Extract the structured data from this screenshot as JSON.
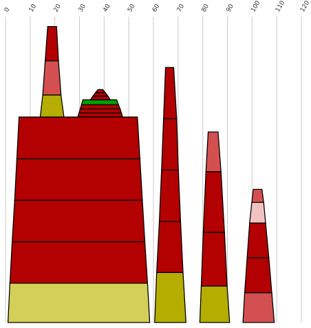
{
  "chart_data": {
    "type": "stacked-trapezoid",
    "x_axis": {
      "range": [
        0,
        120
      ],
      "ticks": [
        0,
        10,
        20,
        30,
        40,
        50,
        60,
        70,
        80,
        90,
        100,
        110,
        120
      ],
      "tick_labels": [
        "0",
        "10",
        "20",
        "30",
        "40",
        "50",
        "60",
        "70",
        "80",
        "90",
        "100",
        "110",
        "120"
      ],
      "label_orientation": "rotated",
      "grid": true
    },
    "y_axis": {
      "range": [
        0,
        100
      ],
      "visible": false
    },
    "colors": {
      "dark_red": "#b30000",
      "medium_red": "#d45050",
      "light_pink": "#f2c2c2",
      "olive": "#b5ad00",
      "light_olive": "#d4cf58",
      "green": "#00a000"
    },
    "towers": [
      {
        "bands": [
          {
            "y": [
              0,
              15.3
            ],
            "x_bottom": [
              1,
              58.5
            ],
            "x_top": [
              1.8,
              57.6
            ],
            "color": "light_olive"
          },
          {
            "y": [
              15.3,
              31.5
            ],
            "x_bottom": [
              1.8,
              57.6
            ],
            "x_top": [
              2.7,
              56.5
            ],
            "color": "dark_red"
          },
          {
            "y": [
              31.5,
              47.7
            ],
            "x_bottom": [
              2.7,
              56.5
            ],
            "x_top": [
              3.7,
              55.5
            ],
            "color": "dark_red"
          },
          {
            "y": [
              47.7,
              63.9
            ],
            "x_bottom": [
              3.7,
              55.5
            ],
            "x_top": [
              4.6,
              54.5
            ],
            "color": "dark_red"
          },
          {
            "y": [
              63.9,
              80.1
            ],
            "x_bottom": [
              4.6,
              54.5
            ],
            "x_top": [
              5.5,
              53.5
            ],
            "color": "dark_red"
          }
        ]
      },
      {
        "bands": [
          {
            "y": [
              80.1,
              88.7
            ],
            "x_bottom": [
              14.1,
              23.7
            ],
            "x_top": [
              15.1,
              22.5
            ],
            "color": "olive"
          },
          {
            "y": [
              88.7,
              102
            ],
            "x_bottom": [
              15.1,
              22.5
            ],
            "x_top": [
              16.1,
              21.5
            ],
            "color": "medium_red"
          },
          {
            "y": [
              102,
              115.4
            ],
            "x_bottom": [
              16.1,
              21.5
            ],
            "x_top": [
              17.1,
              20.7
            ],
            "color": "dark_red"
          }
        ]
      },
      {
        "bands": [
          {
            "y": [
              80.1,
              81.7
            ],
            "x_bottom": [
              29.3,
              47.5
            ],
            "x_top": [
              29.8,
              47
            ],
            "color": "dark_red"
          },
          {
            "y": [
              81.7,
              83.3
            ],
            "x_bottom": [
              29.8,
              47
            ],
            "x_top": [
              30.3,
              46.5
            ],
            "color": "dark_red"
          },
          {
            "y": [
              83.3,
              84.9
            ],
            "x_bottom": [
              30.3,
              46.5
            ],
            "x_top": [
              30.8,
              45.8
            ],
            "color": "dark_red"
          },
          {
            "y": [
              84.9,
              86.8
            ],
            "x_bottom": [
              30.8,
              45.8
            ],
            "x_top": [
              31.4,
              45.1
            ],
            "color": "green"
          },
          {
            "y": [
              86.8,
              88.3
            ],
            "x_bottom": [
              34.4,
              42.5
            ],
            "x_top": [
              35.5,
              41.5
            ],
            "color": "dark_red"
          },
          {
            "y": [
              88.3,
              89.6
            ],
            "x_bottom": [
              35.5,
              41.5
            ],
            "x_top": [
              36.5,
              40.5
            ],
            "color": "dark_red"
          },
          {
            "y": [
              89.6,
              90.8
            ],
            "x_bottom": [
              36.5,
              40.5
            ],
            "x_top": [
              37.5,
              39.5
            ],
            "color": "dark_red"
          }
        ]
      },
      {
        "bands": [
          {
            "y": [
              0,
              19.5
            ],
            "x_bottom": [
              60.5,
              73.2
            ],
            "x_top": [
              61.3,
              72
            ],
            "color": "olive"
          },
          {
            "y": [
              19.5,
              39.4
            ],
            "x_bottom": [
              61.3,
              72
            ],
            "x_top": [
              62.4,
              71
            ],
            "color": "dark_red"
          },
          {
            "y": [
              39.4,
              59.4
            ],
            "x_bottom": [
              62.4,
              71
            ],
            "x_top": [
              63.3,
              70.1
            ],
            "color": "dark_red"
          },
          {
            "y": [
              59.4,
              79.5
            ],
            "x_bottom": [
              63.3,
              70.1
            ],
            "x_top": [
              64.1,
              69.4
            ],
            "color": "dark_red"
          },
          {
            "y": [
              79.5,
              99.4
            ],
            "x_bottom": [
              64.1,
              69.4
            ],
            "x_top": [
              64.9,
              68.2
            ],
            "color": "dark_red"
          }
        ]
      },
      {
        "bands": [
          {
            "y": [
              0,
              14.2
            ],
            "x_bottom": [
              78.8,
              90.9
            ],
            "x_top": [
              79.4,
              89.9
            ],
            "color": "olive"
          },
          {
            "y": [
              14.2,
              35.2
            ],
            "x_bottom": [
              79.4,
              89.9
            ],
            "x_top": [
              80.2,
              88.8
            ],
            "color": "dark_red"
          },
          {
            "y": [
              35.2,
              58.8
            ],
            "x_bottom": [
              80.2,
              88.8
            ],
            "x_top": [
              81.3,
              87.4
            ],
            "color": "dark_red"
          },
          {
            "y": [
              58.8,
              74.3
            ],
            "x_bottom": [
              81.3,
              87.4
            ],
            "x_top": [
              82.2,
              86.2
            ],
            "color": "medium_red"
          }
        ]
      },
      {
        "bands": [
          {
            "y": [
              0,
              11.6
            ],
            "x_bottom": [
              96.3,
              109
            ],
            "x_top": [
              97,
              108
            ],
            "color": "medium_red"
          },
          {
            "y": [
              11.6,
              25.3
            ],
            "x_bottom": [
              97,
              108
            ],
            "x_top": [
              98,
              106.8
            ],
            "color": "dark_red"
          },
          {
            "y": [
              25.3,
              38.8
            ],
            "x_bottom": [
              98,
              106.8
            ],
            "x_top": [
              99,
              105.5
            ],
            "color": "dark_red"
          },
          {
            "y": [
              38.8,
              46.8
            ],
            "x_bottom": [
              99,
              105.5
            ],
            "x_top": [
              99.9,
              104.7
            ],
            "color": "light_pink"
          },
          {
            "y": [
              46.8,
              51.9
            ],
            "x_bottom": [
              99.9,
              104.7
            ],
            "x_top": [
              100.5,
              104
            ],
            "color": "medium_red"
          }
        ]
      }
    ]
  }
}
